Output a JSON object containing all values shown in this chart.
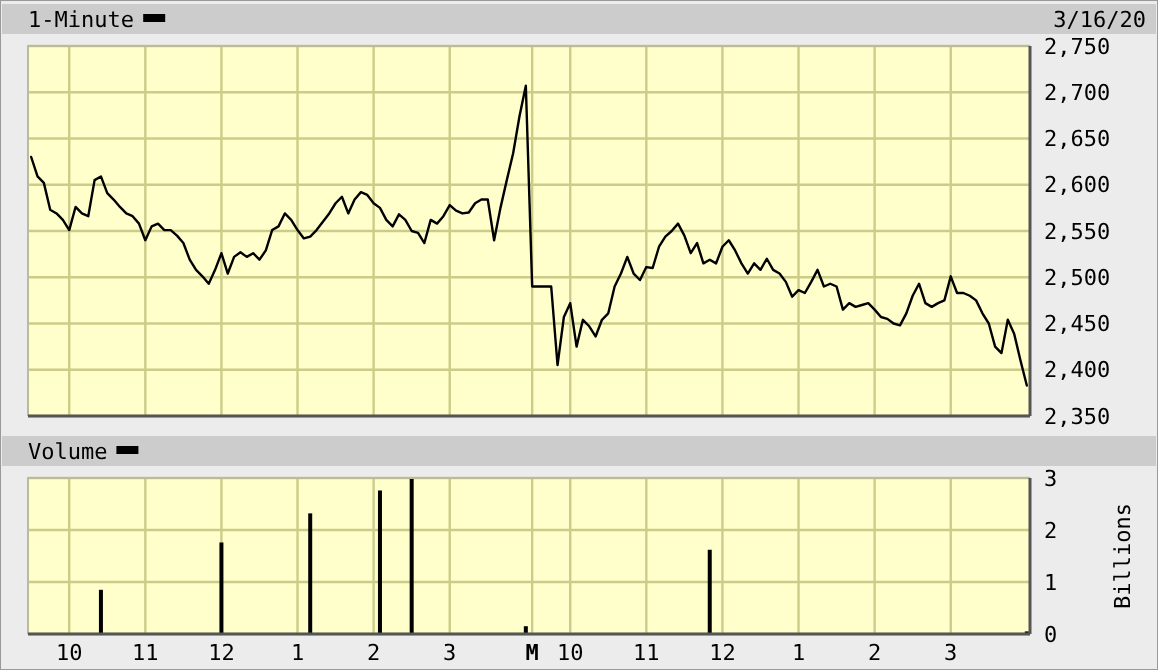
{
  "chart_data": [
    {
      "type": "line",
      "annotations": [
        "3/16/20"
      ],
      "legend": "top left",
      "grid": true,
      "tick_labels": "y",
      "categories": [
        null,
        null,
        null,
        null,
        null,
        null,
        null,
        null,
        null,
        null,
        null,
        null,
        null,
        null,
        null,
        null,
        null,
        null,
        null,
        null,
        null,
        null,
        null,
        null,
        null,
        null,
        null,
        null,
        null,
        null,
        null,
        null,
        null,
        null,
        null,
        null,
        null,
        null,
        null,
        null,
        null,
        null,
        null,
        null,
        null,
        null,
        null,
        null,
        null,
        null,
        null,
        null,
        null,
        null,
        null,
        null,
        null,
        null,
        null,
        null,
        null,
        null,
        null,
        null,
        null,
        null,
        null,
        null,
        null,
        null,
        null,
        null,
        null,
        null,
        null,
        null,
        null,
        null,
        null,
        null,
        null,
        null,
        null,
        null,
        null,
        null,
        null,
        null,
        null,
        null,
        null,
        null,
        null,
        null,
        null,
        null,
        null,
        null,
        null,
        null,
        null,
        null,
        null,
        null,
        null,
        null,
        null,
        null,
        null,
        null,
        null,
        null,
        null,
        null,
        null,
        null,
        null,
        null,
        null,
        null,
        null,
        null,
        null,
        null,
        null,
        null,
        null,
        null,
        null,
        null,
        null,
        null,
        null,
        null,
        null,
        null,
        null,
        null,
        null,
        null,
        null,
        null,
        null,
        null,
        null,
        null,
        null,
        null,
        null,
        null,
        null,
        null,
        null,
        null,
        null,
        null,
        null,
        null
      ],
      "ylim": [
        2350,
        2750
      ],
      "yticks": [
        {
          "value": 2350,
          "label": "2,350"
        },
        {
          "value": 2400,
          "label": "2,400"
        },
        {
          "value": 2450,
          "label": "2,450"
        },
        {
          "value": 2500,
          "label": "2,500"
        },
        {
          "value": 2550,
          "label": "2,550"
        },
        {
          "value": 2600,
          "label": "2,600"
        },
        {
          "value": 2650,
          "label": "2,650"
        },
        {
          "value": 2700,
          "label": "2,700"
        },
        {
          "value": 2750,
          "label": "2,750"
        }
      ],
      "series": [
        {
          "name": "1-Minute",
          "color": "#000000",
          "values": [
            2630,
            2609,
            2602,
            2573,
            2569,
            2562,
            2551,
            2576,
            2569,
            2566,
            2605,
            2609,
            2591,
            2584,
            2576,
            2569,
            2566,
            2558,
            2540,
            2555,
            2558,
            2551,
            2551,
            2545,
            2537,
            2519,
            2508,
            2501,
            2493,
            2508,
            2526,
            2504,
            2522,
            2527,
            2522,
            2526,
            2519,
            2529,
            2551,
            2555,
            2569,
            2562,
            2551,
            2542,
            2544,
            2551,
            2560,
            2569,
            2580,
            2587,
            2569,
            2584,
            2592,
            2589,
            2580,
            2575,
            2562,
            2555,
            2568,
            2562,
            2550,
            2548,
            2537,
            2562,
            2558,
            2566,
            2578,
            2572,
            2569,
            2570,
            2580,
            2584,
            2584,
            2540,
            2575,
            2605,
            2634,
            2674,
            2707,
            2490,
            2490,
            2490,
            2490,
            2405,
            2457,
            2472,
            2425,
            2454,
            2447,
            2436,
            2454,
            2461,
            2490,
            2504,
            2522,
            2504,
            2497,
            2511,
            2510,
            2533,
            2544,
            2550,
            2558,
            2545,
            2526,
            2537,
            2515,
            2519,
            2515,
            2533,
            2540,
            2529,
            2515,
            2504,
            2515,
            2508,
            2520,
            2508,
            2504,
            2495,
            2479,
            2486,
            2483,
            2495,
            2508,
            2490,
            2493,
            2490,
            2465,
            2472,
            2468,
            2470,
            2472,
            2465,
            2457,
            2455,
            2450,
            2448,
            2461,
            2480,
            2493,
            2472,
            2468,
            2472,
            2475,
            2501,
            2483,
            2483,
            2480,
            2475,
            2461,
            2450,
            2425,
            2418,
            2454,
            2439,
            2410,
            2383
          ]
        }
      ]
    },
    {
      "type": "bar",
      "ylabel": "Billions",
      "legend": "top left",
      "grid": true,
      "categories": [
        null,
        null,
        null,
        null,
        null,
        null,
        "10",
        null,
        null,
        null,
        null,
        null,
        null,
        null,
        null,
        null,
        null,
        null,
        "11",
        null,
        null,
        null,
        null,
        null,
        null,
        null,
        null,
        null,
        null,
        null,
        "12",
        null,
        null,
        null,
        null,
        null,
        null,
        null,
        null,
        null,
        null,
        null,
        "1",
        null,
        null,
        null,
        null,
        null,
        null,
        null,
        null,
        null,
        null,
        null,
        "2",
        null,
        null,
        null,
        null,
        null,
        null,
        null,
        null,
        null,
        null,
        null,
        "3",
        null,
        null,
        null,
        null,
        null,
        null,
        null,
        null,
        null,
        null,
        null,
        null,
        "M",
        null,
        null,
        null,
        null,
        null,
        "10",
        null,
        null,
        null,
        null,
        null,
        null,
        null,
        null,
        null,
        null,
        null,
        "11",
        null,
        null,
        null,
        null,
        null,
        null,
        null,
        null,
        null,
        null,
        null,
        "12",
        null,
        null,
        null,
        null,
        null,
        null,
        null,
        null,
        null,
        null,
        null,
        "1",
        null,
        null,
        null,
        null,
        null,
        null,
        null,
        null,
        null,
        null,
        null,
        "2",
        null,
        null,
        null,
        null,
        null,
        null,
        null,
        null,
        null,
        null,
        null,
        "3",
        null,
        null,
        null,
        null,
        null,
        null,
        null,
        null,
        null,
        null,
        null,
        null
      ],
      "ylim": [
        0,
        3
      ],
      "yticks": [
        0,
        1,
        2,
        3
      ],
      "series": [
        {
          "name": "Volume",
          "color": "#000000",
          "values": [
            null,
            null,
            null,
            null,
            null,
            null,
            null,
            null,
            null,
            null,
            null,
            0.85,
            null,
            null,
            null,
            null,
            null,
            null,
            null,
            null,
            null,
            null,
            null,
            null,
            null,
            null,
            null,
            null,
            null,
            null,
            1.76,
            null,
            null,
            null,
            null,
            null,
            null,
            null,
            null,
            null,
            null,
            null,
            null,
            null,
            2.32,
            null,
            null,
            null,
            null,
            null,
            null,
            null,
            null,
            null,
            null,
            2.76,
            null,
            null,
            null,
            null,
            2.99,
            null,
            null,
            null,
            null,
            null,
            null,
            null,
            null,
            null,
            null,
            null,
            null,
            null,
            null,
            null,
            null,
            null,
            0.15,
            null,
            null,
            null,
            null,
            null,
            null,
            null,
            null,
            null,
            null,
            null,
            null,
            null,
            null,
            null,
            null,
            null,
            null,
            null,
            null,
            null,
            null,
            null,
            null,
            null,
            null,
            null,
            null,
            1.62,
            null,
            null,
            null,
            null,
            null,
            null,
            null,
            null,
            null,
            null,
            null,
            null,
            null,
            null,
            null,
            null,
            null,
            null,
            null,
            null,
            null,
            null,
            null,
            null,
            null,
            null,
            null,
            null,
            null,
            null,
            null,
            null,
            null,
            null,
            null,
            null,
            null,
            null,
            null,
            null,
            null,
            null,
            null,
            null,
            null,
            null,
            null,
            null,
            null,
            0.05
          ]
        }
      ]
    }
  ]
}
